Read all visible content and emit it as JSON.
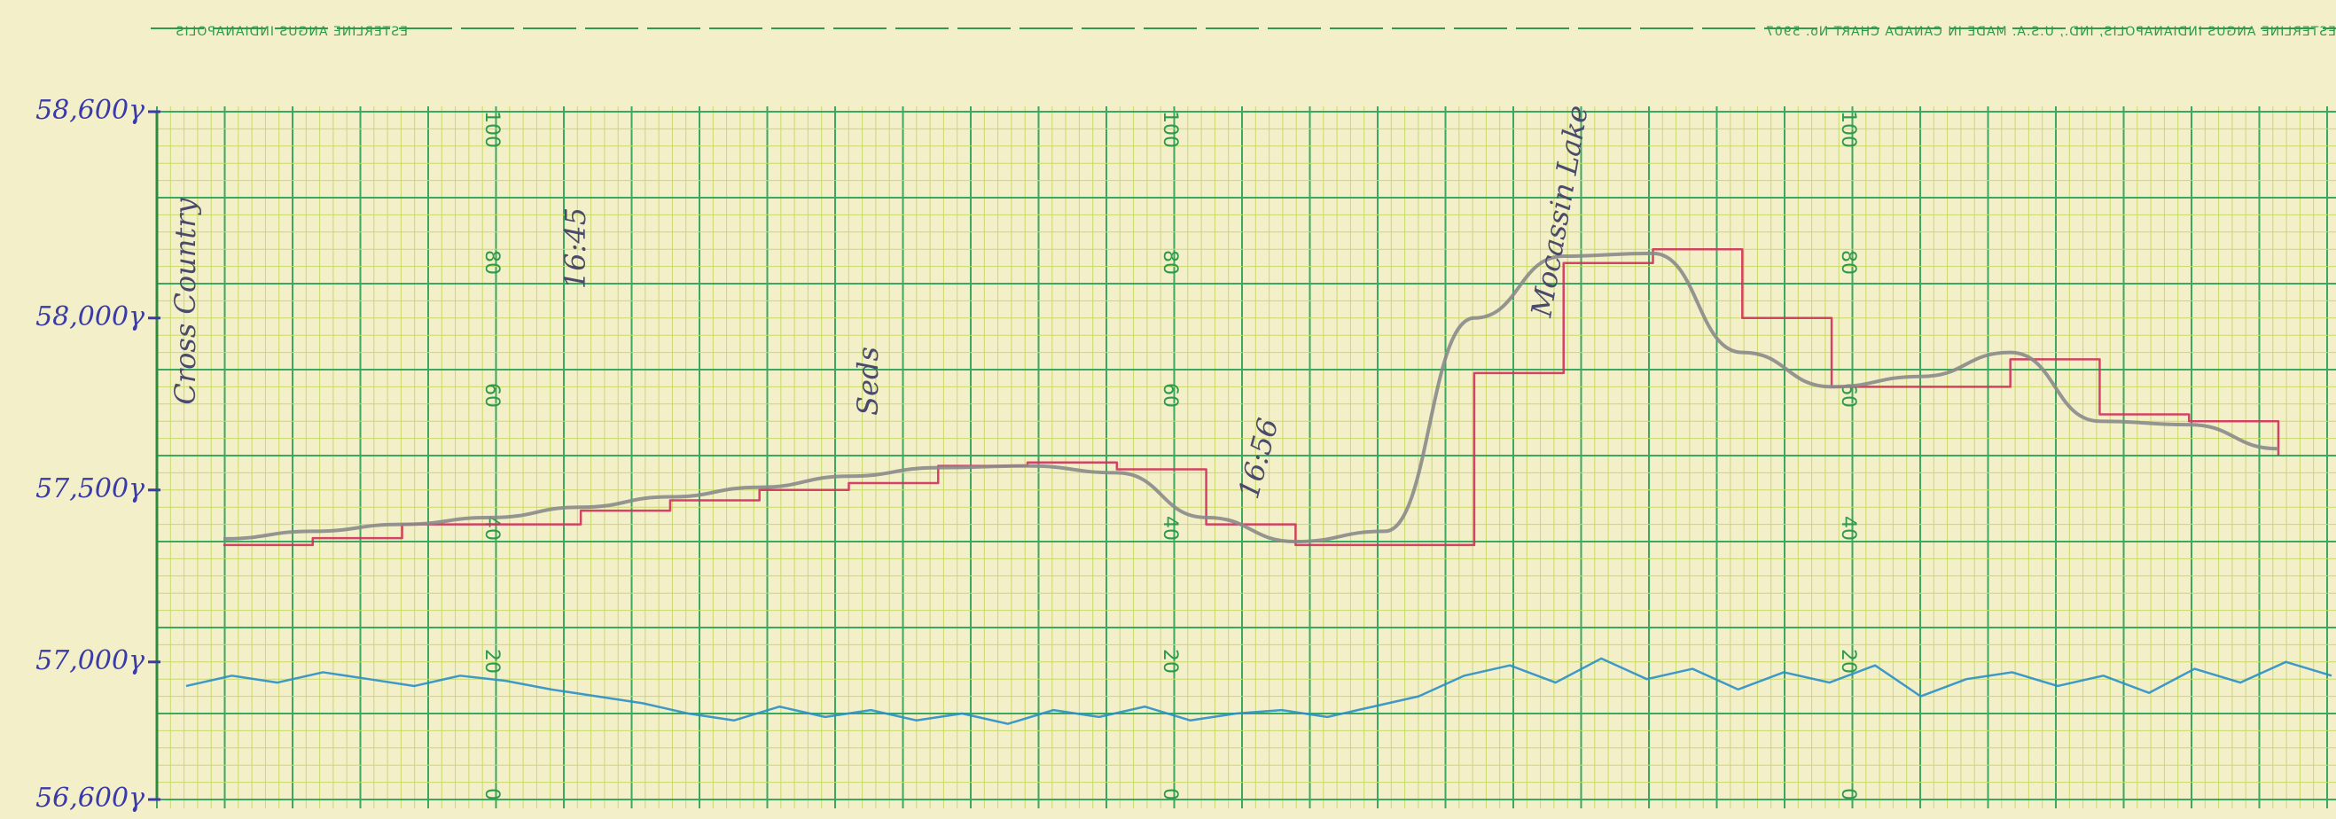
{
  "chart_data": {
    "type": "line",
    "header_left": "ESTERLINE ANGUS INDIANAPOLIS",
    "header_right": "ESTERLINE ANGUS INDIANAPOLIS, IND., U.S.A. MADE IN CANADA   CHART No. 5907",
    "ylim": [
      56600,
      58600
    ],
    "yticks": [
      {
        "value": 56600,
        "label": "56,600γ"
      },
      {
        "value": 57000,
        "label": "57,000γ"
      },
      {
        "value": 57500,
        "label": "57,500γ"
      },
      {
        "value": 58000,
        "label": "58,000γ"
      },
      {
        "value": 58600,
        "label": "58,600γ"
      }
    ],
    "paper_scale_labels": [
      100,
      80,
      60,
      40,
      20,
      0
    ],
    "annotations": [
      "Cross Country",
      "16:45",
      "Seds",
      "16:56",
      "Mocassin Lake"
    ],
    "series": [
      {
        "color": "#d0305a",
        "style": "step",
        "values": [
          57340,
          57360,
          57400,
          57400,
          57440,
          57470,
          57500,
          57520,
          57570,
          57580,
          57560,
          57400,
          57340,
          57340,
          57840,
          58160,
          58200,
          58000,
          57800,
          57800,
          57880,
          57720,
          57700,
          57600
        ]
      },
      {
        "color": "#8a8a8a",
        "style": "smooth",
        "values": [
          57358,
          57380,
          57400,
          57420,
          57450,
          57480,
          57508,
          57540,
          57565,
          57570,
          57550,
          57420,
          57350,
          57380,
          58000,
          58180,
          58188,
          57900,
          57800,
          57830,
          57900,
          57700,
          57690,
          57620
        ]
      },
      {
        "color": "#2a8fc8",
        "style": "noise",
        "values": [
          56930,
          56960,
          56940,
          56970,
          56950,
          56930,
          56960,
          56945,
          56920,
          56900,
          56880,
          56850,
          56830,
          56870,
          56840,
          56860,
          56830,
          56850,
          56820,
          56860,
          56840,
          56870,
          56830,
          56850,
          56860,
          56840,
          56870,
          56900,
          56960,
          56990,
          56940,
          57010,
          56950,
          56980,
          56920,
          56970,
          56940,
          56990,
          56900,
          56950,
          56970,
          56930,
          56960,
          56910,
          56980,
          56940,
          57000,
          56960
        ]
      }
    ]
  }
}
